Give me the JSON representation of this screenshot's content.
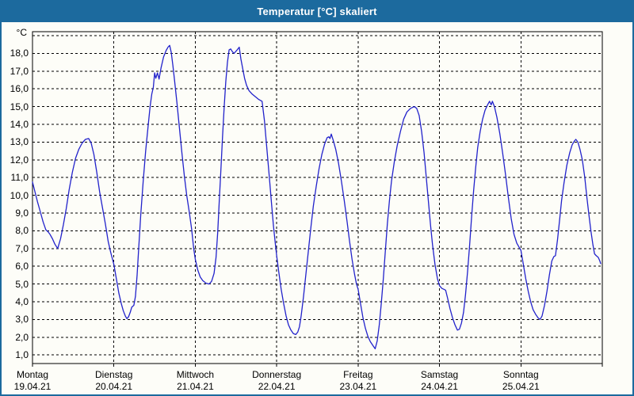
{
  "window": {
    "title": "Temperatur [°C] skaliert"
  },
  "colors": {
    "titlebar_bg": "#1c6a9e",
    "frame": "#1c6a9e",
    "bg": "#fdfdf8",
    "grid": "#000000",
    "text": "#000000",
    "line": "#2222cb"
  },
  "chart_data": {
    "type": "line",
    "title": "Temperatur [°C] skaliert",
    "ylabel": "°C",
    "xlabel": "",
    "ylim": [
      0.5,
      19.25
    ],
    "x_range_days": [
      0,
      7
    ],
    "grid": "dashed",
    "legend_position": "none",
    "y_grid_values": [
      1,
      2,
      3,
      4,
      5,
      6,
      7,
      8,
      9,
      10,
      11,
      12,
      13,
      14,
      15,
      16,
      17,
      18,
      19
    ],
    "y_ticks": [
      {
        "v": 18,
        "label": "18,0"
      },
      {
        "v": 17,
        "label": "17,0"
      },
      {
        "v": 16,
        "label": "16,0"
      },
      {
        "v": 15,
        "label": "15,0"
      },
      {
        "v": 14,
        "label": "14,0"
      },
      {
        "v": 13,
        "label": "13,0"
      },
      {
        "v": 12,
        "label": "12,0"
      },
      {
        "v": 11,
        "label": "11,0"
      },
      {
        "v": 10,
        "label": "10,0"
      },
      {
        "v": 9,
        "label": "9,0"
      },
      {
        "v": 8,
        "label": "8,0"
      },
      {
        "v": 7,
        "label": "7,0"
      },
      {
        "v": 6,
        "label": "6,0"
      },
      {
        "v": 5,
        "label": "5,0"
      },
      {
        "v": 4,
        "label": "4,0"
      },
      {
        "v": 3,
        "label": "3,0"
      },
      {
        "v": 2,
        "label": "2,0"
      },
      {
        "v": 1,
        "label": "1,0"
      }
    ],
    "x_day_ticks": [
      {
        "name": "Montag",
        "date": "19.04.21"
      },
      {
        "name": "Dienstag",
        "date": "20.04.21"
      },
      {
        "name": "Mittwoch",
        "date": "21.04.21"
      },
      {
        "name": "Donnerstag",
        "date": "22.04.21"
      },
      {
        "name": "Freitag",
        "date": "23.04.21"
      },
      {
        "name": "Samstag",
        "date": "24.04.21"
      },
      {
        "name": "Sonntag",
        "date": "25.04.21"
      }
    ],
    "series": [
      {
        "name": "Temperatur [°C]",
        "color": "#2222cb",
        "x_unit": "days_since_19_04_21_00h",
        "points": [
          [
            0.0,
            10.75
          ],
          [
            0.03,
            10.2
          ],
          [
            0.06,
            9.65
          ],
          [
            0.1,
            9.0
          ],
          [
            0.13,
            8.5
          ],
          [
            0.165,
            8.05
          ],
          [
            0.19,
            7.95
          ],
          [
            0.215,
            7.8
          ],
          [
            0.245,
            7.55
          ],
          [
            0.275,
            7.25
          ],
          [
            0.31,
            7.0
          ],
          [
            0.345,
            7.55
          ],
          [
            0.38,
            8.35
          ],
          [
            0.415,
            9.25
          ],
          [
            0.45,
            10.3
          ],
          [
            0.49,
            11.3
          ],
          [
            0.53,
            12.1
          ],
          [
            0.57,
            12.6
          ],
          [
            0.61,
            12.95
          ],
          [
            0.65,
            13.15
          ],
          [
            0.69,
            13.2
          ],
          [
            0.72,
            12.95
          ],
          [
            0.755,
            12.3
          ],
          [
            0.79,
            11.3
          ],
          [
            0.825,
            10.2
          ],
          [
            0.86,
            9.3
          ],
          [
            0.895,
            8.4
          ],
          [
            0.93,
            7.4
          ],
          [
            0.96,
            6.8
          ],
          [
            1.0,
            6.1
          ],
          [
            1.03,
            5.3
          ],
          [
            1.06,
            4.5
          ],
          [
            1.09,
            3.9
          ],
          [
            1.115,
            3.5
          ],
          [
            1.14,
            3.2
          ],
          [
            1.16,
            3.05
          ],
          [
            1.18,
            3.15
          ],
          [
            1.2,
            3.4
          ],
          [
            1.22,
            3.7
          ],
          [
            1.245,
            3.8
          ],
          [
            1.265,
            4.3
          ],
          [
            1.285,
            5.5
          ],
          [
            1.305,
            7.0
          ],
          [
            1.33,
            8.9
          ],
          [
            1.36,
            10.8
          ],
          [
            1.39,
            12.5
          ],
          [
            1.42,
            13.9
          ],
          [
            1.445,
            15.0
          ],
          [
            1.465,
            15.7
          ],
          [
            1.485,
            16.1
          ],
          [
            1.5,
            16.9
          ],
          [
            1.515,
            16.6
          ],
          [
            1.535,
            16.9
          ],
          [
            1.555,
            16.55
          ],
          [
            1.58,
            17.2
          ],
          [
            1.61,
            17.8
          ],
          [
            1.64,
            18.15
          ],
          [
            1.665,
            18.35
          ],
          [
            1.685,
            18.45
          ],
          [
            1.705,
            18.05
          ],
          [
            1.725,
            17.3
          ],
          [
            1.745,
            16.5
          ],
          [
            1.775,
            15.2
          ],
          [
            1.805,
            13.8
          ],
          [
            1.835,
            12.4
          ],
          [
            1.865,
            11.1
          ],
          [
            1.895,
            10.0
          ],
          [
            1.925,
            9.1
          ],
          [
            1.955,
            8.1
          ],
          [
            1.98,
            7.0
          ],
          [
            2.0,
            6.4
          ],
          [
            2.03,
            5.8
          ],
          [
            2.06,
            5.4
          ],
          [
            2.09,
            5.2
          ],
          [
            2.13,
            5.05
          ],
          [
            2.17,
            5.0
          ],
          [
            2.2,
            5.15
          ],
          [
            2.23,
            5.6
          ],
          [
            2.255,
            6.5
          ],
          [
            2.275,
            7.9
          ],
          [
            2.295,
            9.7
          ],
          [
            2.315,
            11.5
          ],
          [
            2.335,
            13.3
          ],
          [
            2.355,
            15.0
          ],
          [
            2.375,
            16.4
          ],
          [
            2.395,
            17.5
          ],
          [
            2.415,
            18.2
          ],
          [
            2.435,
            18.25
          ],
          [
            2.455,
            18.1
          ],
          [
            2.475,
            18.0
          ],
          [
            2.495,
            18.1
          ],
          [
            2.515,
            18.2
          ],
          [
            2.54,
            18.35
          ],
          [
            2.56,
            17.7
          ],
          [
            2.58,
            17.2
          ],
          [
            2.605,
            16.6
          ],
          [
            2.63,
            16.2
          ],
          [
            2.66,
            15.9
          ],
          [
            2.7,
            15.7
          ],
          [
            2.74,
            15.55
          ],
          [
            2.78,
            15.4
          ],
          [
            2.82,
            15.3
          ],
          [
            2.85,
            14.2
          ],
          [
            2.88,
            12.6
          ],
          [
            2.91,
            11.0
          ],
          [
            2.935,
            9.6
          ],
          [
            2.96,
            8.3
          ],
          [
            2.98,
            7.4
          ],
          [
            3.0,
            6.6
          ],
          [
            3.025,
            5.7
          ],
          [
            3.055,
            4.7
          ],
          [
            3.085,
            3.9
          ],
          [
            3.115,
            3.2
          ],
          [
            3.145,
            2.7
          ],
          [
            3.175,
            2.4
          ],
          [
            3.205,
            2.2
          ],
          [
            3.235,
            2.15
          ],
          [
            3.26,
            2.3
          ],
          [
            3.28,
            2.6
          ],
          [
            3.3,
            3.2
          ],
          [
            3.33,
            4.3
          ],
          [
            3.36,
            5.6
          ],
          [
            3.39,
            6.9
          ],
          [
            3.42,
            8.2
          ],
          [
            3.45,
            9.4
          ],
          [
            3.485,
            10.5
          ],
          [
            3.52,
            11.5
          ],
          [
            3.555,
            12.3
          ],
          [
            3.59,
            12.9
          ],
          [
            3.62,
            13.25
          ],
          [
            3.64,
            13.3
          ],
          [
            3.655,
            13.2
          ],
          [
            3.67,
            13.45
          ],
          [
            3.695,
            13.1
          ],
          [
            3.725,
            12.6
          ],
          [
            3.76,
            11.8
          ],
          [
            3.795,
            10.8
          ],
          [
            3.83,
            9.7
          ],
          [
            3.865,
            8.5
          ],
          [
            3.895,
            7.4
          ],
          [
            3.925,
            6.4
          ],
          [
            3.955,
            5.6
          ],
          [
            3.98,
            5.0
          ],
          [
            4.0,
            4.7
          ],
          [
            4.03,
            3.9
          ],
          [
            4.06,
            3.1
          ],
          [
            4.09,
            2.5
          ],
          [
            4.12,
            2.05
          ],
          [
            4.15,
            1.75
          ],
          [
            4.18,
            1.55
          ],
          [
            4.21,
            1.35
          ],
          [
            4.235,
            1.8
          ],
          [
            4.26,
            2.7
          ],
          [
            4.285,
            3.9
          ],
          [
            4.31,
            5.3
          ],
          [
            4.335,
            6.9
          ],
          [
            4.36,
            8.4
          ],
          [
            4.385,
            9.7
          ],
          [
            4.41,
            10.8
          ],
          [
            4.445,
            11.9
          ],
          [
            4.48,
            12.8
          ],
          [
            4.52,
            13.6
          ],
          [
            4.56,
            14.3
          ],
          [
            4.6,
            14.7
          ],
          [
            4.645,
            14.9
          ],
          [
            4.69,
            15.0
          ],
          [
            4.72,
            14.9
          ],
          [
            4.75,
            14.5
          ],
          [
            4.78,
            13.6
          ],
          [
            4.81,
            12.4
          ],
          [
            4.84,
            10.9
          ],
          [
            4.865,
            9.6
          ],
          [
            4.89,
            8.3
          ],
          [
            4.915,
            7.2
          ],
          [
            4.945,
            6.1
          ],
          [
            4.975,
            5.3
          ],
          [
            5.0,
            4.9
          ],
          [
            5.03,
            4.75
          ],
          [
            5.055,
            4.7
          ],
          [
            5.075,
            4.65
          ],
          [
            5.1,
            4.2
          ],
          [
            5.13,
            3.6
          ],
          [
            5.16,
            3.1
          ],
          [
            5.19,
            2.7
          ],
          [
            5.22,
            2.4
          ],
          [
            5.245,
            2.45
          ],
          [
            5.27,
            2.8
          ],
          [
            5.295,
            3.4
          ],
          [
            5.32,
            4.4
          ],
          [
            5.345,
            5.7
          ],
          [
            5.37,
            7.2
          ],
          [
            5.395,
            8.8
          ],
          [
            5.42,
            10.3
          ],
          [
            5.445,
            11.6
          ],
          [
            5.47,
            12.7
          ],
          [
            5.5,
            13.6
          ],
          [
            5.53,
            14.3
          ],
          [
            5.56,
            14.8
          ],
          [
            5.59,
            15.1
          ],
          [
            5.615,
            15.3
          ],
          [
            5.635,
            15.1
          ],
          [
            5.65,
            15.3
          ],
          [
            5.675,
            15.0
          ],
          [
            5.705,
            14.4
          ],
          [
            5.74,
            13.5
          ],
          [
            5.775,
            12.4
          ],
          [
            5.81,
            11.2
          ],
          [
            5.845,
            9.9
          ],
          [
            5.88,
            8.7
          ],
          [
            5.915,
            7.8
          ],
          [
            5.95,
            7.3
          ],
          [
            5.975,
            7.1
          ],
          [
            6.0,
            6.9
          ],
          [
            6.03,
            6.1
          ],
          [
            6.06,
            5.3
          ],
          [
            6.09,
            4.6
          ],
          [
            6.12,
            4.0
          ],
          [
            6.15,
            3.55
          ],
          [
            6.18,
            3.3
          ],
          [
            6.21,
            3.1
          ],
          [
            6.235,
            3.0
          ],
          [
            6.26,
            3.2
          ],
          [
            6.29,
            3.8
          ],
          [
            6.32,
            4.6
          ],
          [
            6.35,
            5.5
          ],
          [
            6.38,
            6.3
          ],
          [
            6.405,
            6.55
          ],
          [
            6.425,
            6.6
          ],
          [
            6.45,
            7.5
          ],
          [
            6.475,
            8.6
          ],
          [
            6.5,
            9.7
          ],
          [
            6.53,
            10.7
          ],
          [
            6.565,
            11.7
          ],
          [
            6.6,
            12.4
          ],
          [
            6.63,
            12.85
          ],
          [
            6.655,
            13.05
          ],
          [
            6.675,
            13.15
          ],
          [
            6.7,
            13.0
          ],
          [
            6.725,
            12.6
          ],
          [
            6.755,
            12.0
          ],
          [
            6.785,
            11.0
          ],
          [
            6.81,
            9.9
          ],
          [
            6.835,
            8.9
          ],
          [
            6.86,
            8.0
          ],
          [
            6.885,
            7.2
          ],
          [
            6.905,
            6.7
          ],
          [
            6.925,
            6.6
          ],
          [
            6.95,
            6.5
          ],
          [
            6.97,
            6.3
          ],
          [
            6.98,
            6.15
          ]
        ]
      }
    ]
  }
}
